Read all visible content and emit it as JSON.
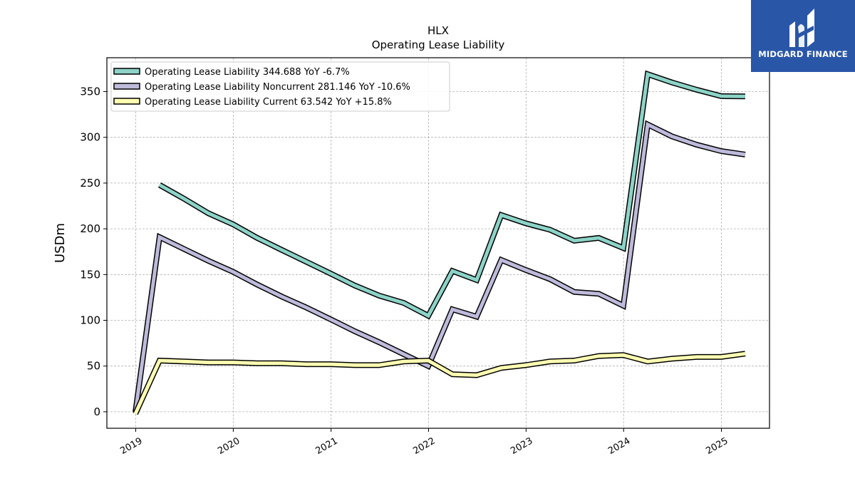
{
  "chart_data": {
    "type": "line",
    "title": "HLX",
    "subtitle": "Operating Lease Liability",
    "ylabel": "USDm",
    "xlabel": "",
    "ylim": [
      -18,
      387
    ],
    "yticks": [
      0,
      50,
      100,
      150,
      200,
      250,
      300,
      350
    ],
    "xlim": [
      "2018-09-15",
      "2025-06-30"
    ],
    "xticks": [
      "2019",
      "2020",
      "2021",
      "2022",
      "2023",
      "2024",
      "2025"
    ],
    "grid": true,
    "legend_position": "top-left",
    "series": [
      {
        "name": "Operating Lease Liability  344.688 YoY -6.7%",
        "color": "#8dd3c7",
        "points": [
          [
            "2019-03-31",
            248
          ],
          [
            "2019-06-30",
            233
          ],
          [
            "2019-09-30",
            217
          ],
          [
            "2019-12-31",
            205
          ],
          [
            "2020-03-31",
            190
          ],
          [
            "2020-06-30",
            177
          ],
          [
            "2020-09-30",
            164
          ],
          [
            "2020-12-31",
            151
          ],
          [
            "2021-03-31",
            138
          ],
          [
            "2021-06-30",
            127
          ],
          [
            "2021-09-30",
            119
          ],
          [
            "2021-12-31",
            105
          ],
          [
            "2022-03-31",
            154
          ],
          [
            "2022-06-30",
            144
          ],
          [
            "2022-09-30",
            215
          ],
          [
            "2022-12-31",
            206
          ],
          [
            "2023-03-31",
            199
          ],
          [
            "2023-06-30",
            187
          ],
          [
            "2023-09-30",
            190
          ],
          [
            "2023-12-31",
            179
          ],
          [
            "2024-03-31",
            369
          ],
          [
            "2024-06-30",
            360
          ],
          [
            "2024-09-30",
            352
          ],
          [
            "2024-12-31",
            345
          ],
          [
            "2025-03-31",
            344.688
          ]
        ]
      },
      {
        "name": "Operating Lease Liability Noncurrent  281.146 YoY -10.6%",
        "color": "#bebada",
        "points": [
          [
            "2018-12-31",
            0
          ],
          [
            "2019-03-31",
            191
          ],
          [
            "2019-06-30",
            178
          ],
          [
            "2019-09-30",
            165
          ],
          [
            "2019-12-31",
            153
          ],
          [
            "2020-03-31",
            139
          ],
          [
            "2020-06-30",
            126
          ],
          [
            "2020-09-30",
            114
          ],
          [
            "2020-12-31",
            101
          ],
          [
            "2021-03-31",
            88
          ],
          [
            "2021-06-30",
            76
          ],
          [
            "2021-09-30",
            63
          ],
          [
            "2021-12-31",
            50
          ],
          [
            "2022-03-31",
            112
          ],
          [
            "2022-06-30",
            104
          ],
          [
            "2022-09-30",
            166
          ],
          [
            "2022-12-31",
            155
          ],
          [
            "2023-03-31",
            145
          ],
          [
            "2023-06-30",
            131
          ],
          [
            "2023-09-30",
            129
          ],
          [
            "2023-12-31",
            116
          ],
          [
            "2024-03-31",
            314
          ],
          [
            "2024-06-30",
            301
          ],
          [
            "2024-09-30",
            292
          ],
          [
            "2024-12-31",
            285
          ],
          [
            "2025-03-31",
            281.146
          ]
        ]
      },
      {
        "name": "Operating Lease Liability Current  63.542 YoY +15.8%",
        "color": "#ffffb3",
        "points": [
          [
            "2018-12-31",
            -2
          ],
          [
            "2019-03-31",
            56
          ],
          [
            "2019-06-30",
            55
          ],
          [
            "2019-09-30",
            54
          ],
          [
            "2019-12-31",
            54
          ],
          [
            "2020-03-31",
            53
          ],
          [
            "2020-06-30",
            53
          ],
          [
            "2020-09-30",
            52
          ],
          [
            "2020-12-31",
            52
          ],
          [
            "2021-03-31",
            51
          ],
          [
            "2021-06-30",
            51
          ],
          [
            "2021-09-30",
            55
          ],
          [
            "2021-12-31",
            56
          ],
          [
            "2022-03-31",
            41
          ],
          [
            "2022-06-30",
            40
          ],
          [
            "2022-09-30",
            48
          ],
          [
            "2022-12-31",
            51
          ],
          [
            "2023-03-31",
            55
          ],
          [
            "2023-06-30",
            56
          ],
          [
            "2023-09-30",
            61
          ],
          [
            "2023-12-31",
            62
          ],
          [
            "2024-03-31",
            55
          ],
          [
            "2024-06-30",
            58
          ],
          [
            "2024-09-30",
            60
          ],
          [
            "2024-12-31",
            60
          ],
          [
            "2025-03-31",
            63.542
          ]
        ]
      }
    ]
  },
  "logo": {
    "text": "MIDGARD FINANCE",
    "icon": "midgard-logo-icon",
    "background": "#2a56a8"
  }
}
